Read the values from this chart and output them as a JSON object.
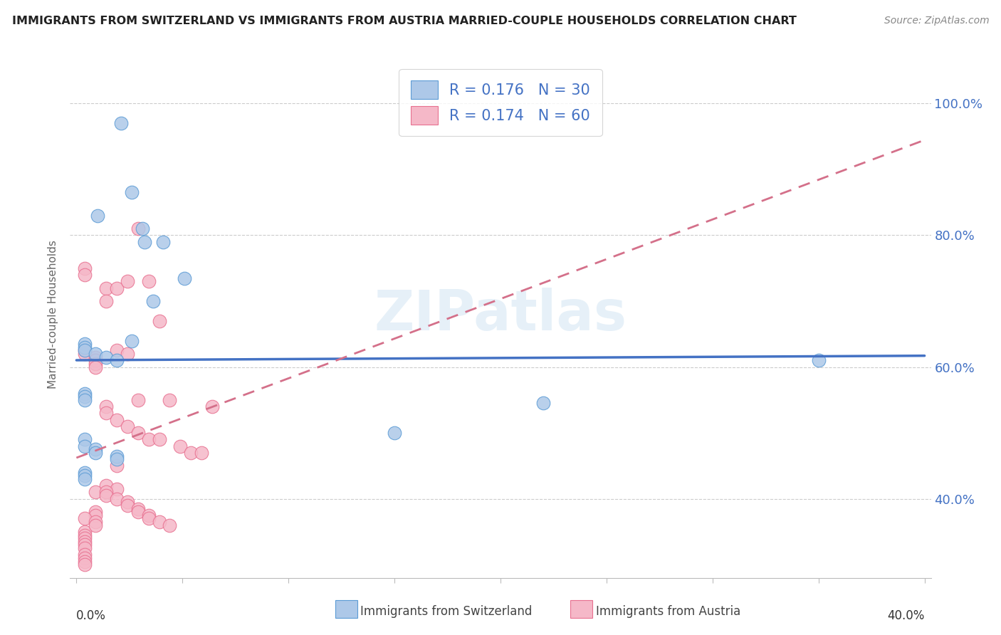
{
  "title": "IMMIGRANTS FROM SWITZERLAND VS IMMIGRANTS FROM AUSTRIA MARRIED-COUPLE HOUSEHOLDS CORRELATION CHART",
  "source": "Source: ZipAtlas.com",
  "ylabel": "Married-couple Households",
  "yticks": [
    "40.0%",
    "60.0%",
    "80.0%",
    "100.0%"
  ],
  "ytick_vals": [
    0.4,
    0.6,
    0.8,
    1.0
  ],
  "xlim": [
    -0.003,
    0.403
  ],
  "ylim": [
    0.28,
    1.08
  ],
  "color_swiss": "#adc8e8",
  "color_austria": "#f5b8c8",
  "color_swiss_edge": "#5b9bd5",
  "color_austria_edge": "#e87090",
  "color_swiss_line": "#4472C4",
  "color_austria_line": "#d4708a",
  "watermark": "ZIPatlas",
  "swiss_x": [
    0.021,
    0.026,
    0.01,
    0.031,
    0.032,
    0.041,
    0.036,
    0.026,
    0.004,
    0.004,
    0.004,
    0.009,
    0.014,
    0.019,
    0.004,
    0.004,
    0.004,
    0.004,
    0.004,
    0.009,
    0.009,
    0.019,
    0.019,
    0.051,
    0.004,
    0.004,
    0.004,
    0.35,
    0.22,
    0.15
  ],
  "swiss_y": [
    0.97,
    0.865,
    0.83,
    0.81,
    0.79,
    0.79,
    0.7,
    0.64,
    0.635,
    0.63,
    0.625,
    0.62,
    0.615,
    0.61,
    0.56,
    0.555,
    0.55,
    0.49,
    0.48,
    0.475,
    0.47,
    0.465,
    0.46,
    0.735,
    0.44,
    0.435,
    0.43,
    0.61,
    0.545,
    0.5
  ],
  "austria_x": [
    0.004,
    0.004,
    0.004,
    0.004,
    0.004,
    0.004,
    0.004,
    0.004,
    0.004,
    0.004,
    0.009,
    0.009,
    0.009,
    0.009,
    0.009,
    0.009,
    0.014,
    0.014,
    0.014,
    0.014,
    0.014,
    0.019,
    0.019,
    0.019,
    0.019,
    0.024,
    0.024,
    0.024,
    0.029,
    0.029,
    0.029,
    0.034,
    0.034,
    0.039,
    0.039,
    0.044,
    0.049,
    0.054,
    0.059,
    0.064,
    0.004,
    0.004,
    0.004,
    0.004,
    0.004,
    0.009,
    0.009,
    0.009,
    0.014,
    0.014,
    0.019,
    0.019,
    0.024,
    0.024,
    0.029,
    0.029,
    0.034,
    0.034,
    0.039,
    0.044
  ],
  "austria_y": [
    0.75,
    0.74,
    0.625,
    0.62,
    0.35,
    0.345,
    0.34,
    0.335,
    0.33,
    0.325,
    0.615,
    0.61,
    0.605,
    0.6,
    0.38,
    0.375,
    0.72,
    0.7,
    0.54,
    0.53,
    0.42,
    0.72,
    0.625,
    0.52,
    0.415,
    0.73,
    0.62,
    0.51,
    0.81,
    0.55,
    0.5,
    0.73,
    0.49,
    0.67,
    0.49,
    0.55,
    0.48,
    0.47,
    0.47,
    0.54,
    0.315,
    0.31,
    0.305,
    0.3,
    0.37,
    0.365,
    0.36,
    0.41,
    0.41,
    0.405,
    0.45,
    0.4,
    0.395,
    0.39,
    0.385,
    0.38,
    0.375,
    0.37,
    0.365,
    0.36
  ]
}
